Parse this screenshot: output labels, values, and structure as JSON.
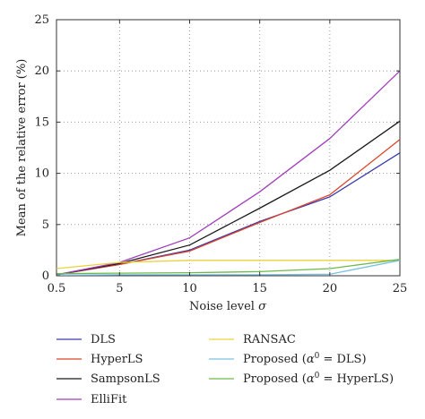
{
  "chart_data": {
    "type": "line",
    "xlabel": "Noise level σ",
    "ylabel": "Mean of the relative error (%)",
    "x": [
      0.5,
      5,
      10,
      15,
      20,
      25
    ],
    "xticks": [
      "0.5",
      "5",
      "10",
      "15",
      "20",
      "25"
    ],
    "yticks": [
      "0",
      "5",
      "10",
      "15",
      "20",
      "25"
    ],
    "xlim": [
      0.5,
      25
    ],
    "ylim": [
      0,
      25
    ],
    "grid": true,
    "legend_position": "bottom",
    "series": [
      {
        "name": "DLS",
        "color": "#3a3ab0",
        "values": [
          0.1,
          1.1,
          2.5,
          5.3,
          7.7,
          12.0
        ]
      },
      {
        "name": "HyperLS",
        "color": "#d9462b",
        "values": [
          0.1,
          1.1,
          2.4,
          5.2,
          7.9,
          13.3
        ]
      },
      {
        "name": "SampsonLS",
        "color": "#1a1a1a",
        "values": [
          0.1,
          1.2,
          3.0,
          6.6,
          10.3,
          15.1
        ]
      },
      {
        "name": "ElliFit",
        "color": "#a040b8",
        "values": [
          0.1,
          1.3,
          3.7,
          8.2,
          13.4,
          20.0
        ]
      },
      {
        "name": "RANSAC",
        "color": "#e8d33a",
        "values": [
          0.7,
          1.3,
          1.5,
          1.5,
          1.5,
          1.5
        ]
      },
      {
        "name": "Proposed (α⁰ = DLS)",
        "color": "#7cc0e0",
        "values": [
          0.05,
          0.1,
          0.1,
          0.1,
          0.15,
          1.5
        ]
      },
      {
        "name": "Proposed (α⁰ = HyperLS)",
        "color": "#6aba4a",
        "values": [
          0.2,
          0.25,
          0.3,
          0.4,
          0.7,
          1.6
        ]
      }
    ],
    "legend": {
      "left": [
        "DLS",
        "HyperLS",
        "SampsonLS",
        "ElliFit"
      ],
      "right_plain": "RANSAC",
      "right_math": [
        {
          "prefix": "Proposed (",
          "base": "α",
          "sup": "0",
          "suffix": " = DLS)"
        },
        {
          "prefix": "Proposed (",
          "base": "α",
          "sup": "0",
          "suffix": " = HyperLS)"
        }
      ]
    }
  }
}
